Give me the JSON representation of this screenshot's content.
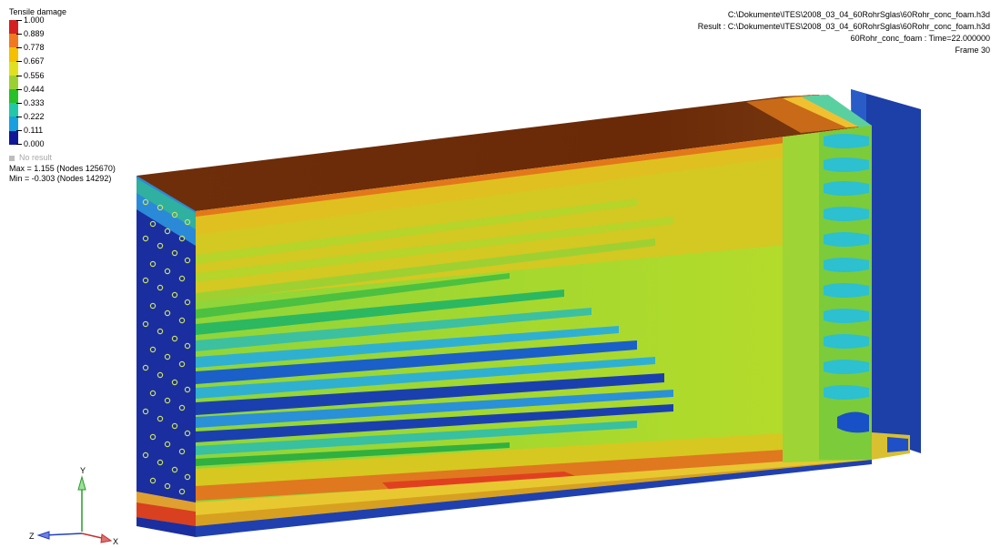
{
  "legend": {
    "title": "Tensile damage",
    "entries": [
      "1.000",
      "0.889",
      "0.778",
      "0.667",
      "0.556",
      "0.444",
      "0.333",
      "0.222",
      "0.111",
      "0.000"
    ],
    "colors": [
      "#d42020",
      "#f07820",
      "#f4c000",
      "#e0e020",
      "#9cd030",
      "#28c028",
      "#20c8a8",
      "#18a0e0",
      "#1850d0",
      "#101898"
    ],
    "no_result": "No result",
    "max": "Max = 1.155 (Nodes 125670)",
    "min": "Min = -0.303 (Nodes 14292)"
  },
  "info": {
    "file_path": "C:\\Dokumente\\ITES\\2008_03_04_60RohrSglas\\60Rohr_conc_foam.h3d",
    "result_path": "Result : C:\\Dokumente\\ITES\\2008_03_04_60RohrSglas\\60Rohr_conc_foam.h3d",
    "time": "60Rohr_conc_foam : Time=22.000000",
    "frame": "Frame 30"
  },
  "triad": {
    "y_label": "Y",
    "z_label": "Z",
    "x_label": "X"
  }
}
